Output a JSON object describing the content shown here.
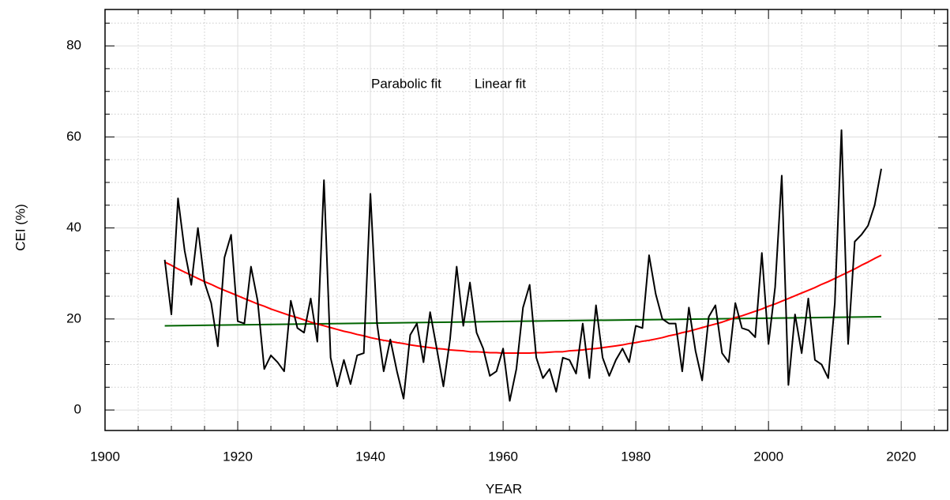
{
  "chart_data": {
    "type": "line",
    "xlabel": "YEAR",
    "ylabel": "CEI (%)",
    "x": [
      1909,
      1910,
      1911,
      1912,
      1913,
      1914,
      1915,
      1916,
      1917,
      1918,
      1919,
      1920,
      1921,
      1922,
      1923,
      1924,
      1925,
      1926,
      1927,
      1928,
      1929,
      1930,
      1931,
      1932,
      1933,
      1934,
      1935,
      1936,
      1937,
      1938,
      1939,
      1940,
      1941,
      1942,
      1943,
      1944,
      1945,
      1946,
      1947,
      1948,
      1949,
      1950,
      1951,
      1952,
      1953,
      1954,
      1955,
      1956,
      1957,
      1958,
      1959,
      1960,
      1961,
      1962,
      1963,
      1964,
      1965,
      1966,
      1967,
      1968,
      1969,
      1970,
      1971,
      1972,
      1973,
      1974,
      1975,
      1976,
      1977,
      1978,
      1979,
      1980,
      1981,
      1982,
      1983,
      1984,
      1985,
      1986,
      1987,
      1988,
      1989,
      1990,
      1991,
      1992,
      1993,
      1994,
      1995,
      1996,
      1997,
      1998,
      1999,
      2000,
      2001,
      2002,
      2003,
      2004,
      2005,
      2006,
      2007,
      2008,
      2009,
      2010,
      2011,
      2012,
      2013,
      2014,
      2015,
      2016,
      2017
    ],
    "series": [
      {
        "color": "#000000",
        "values": [
          33,
          21,
          46.5,
          35,
          27.5,
          40,
          28,
          23.5,
          14,
          33.5,
          38.5,
          19.5,
          19,
          31.5,
          24,
          9,
          12,
          10.5,
          8.5,
          24,
          18,
          17,
          24.5,
          15,
          50.5,
          11.5,
          5.2,
          11,
          5.7,
          12,
          12.5,
          47.5,
          19,
          8.5,
          15.5,
          8.5,
          2.5,
          16.5,
          19,
          10.5,
          21.5,
          13.5,
          5.2,
          15.5,
          31.5,
          18.5,
          28,
          17,
          13.5,
          7.5,
          8.5,
          13.5,
          2,
          9,
          22.5,
          27.5,
          11.5,
          7,
          9,
          4,
          11.5,
          11,
          8,
          19,
          7,
          23,
          11.5,
          7.5,
          11,
          13.5,
          10.5,
          18.5,
          18,
          34,
          25.5,
          20,
          19,
          19,
          8.5,
          22.5,
          13,
          6.5,
          20.5,
          23,
          12.5,
          10.5,
          23.5,
          18,
          17.5,
          16,
          34.5,
          14.5,
          27,
          51.5,
          5.5,
          21,
          12.5,
          24.5,
          11,
          10,
          7,
          23.5,
          61.5,
          14.5,
          37,
          38.5,
          40.5,
          45,
          53
        ]
      },
      {
        "name": "Parabolic fit",
        "color": "#ff0000",
        "values": [
          32.5,
          31.8,
          31.0,
          30.3,
          29.6,
          28.9,
          28.2,
          27.6,
          26.9,
          26.3,
          25.7,
          25.1,
          24.5,
          23.9,
          23.3,
          22.8,
          22.2,
          21.7,
          21.2,
          20.7,
          20.3,
          19.8,
          19.3,
          18.9,
          18.5,
          18.1,
          17.7,
          17.3,
          17.0,
          16.6,
          16.3,
          15.9,
          15.6,
          15.3,
          15.1,
          14.8,
          14.6,
          14.3,
          14.1,
          13.9,
          13.7,
          13.5,
          13.4,
          13.2,
          13.1,
          13.0,
          12.8,
          12.8,
          12.7,
          12.6,
          12.6,
          12.5,
          12.5,
          12.5,
          12.5,
          12.5,
          12.6,
          12.6,
          12.7,
          12.8,
          12.8,
          13.0,
          13.1,
          13.2,
          13.4,
          13.5,
          13.7,
          13.9,
          14.1,
          14.3,
          14.6,
          14.8,
          15.1,
          15.3,
          15.6,
          15.9,
          16.3,
          16.6,
          17.0,
          17.3,
          17.7,
          18.1,
          18.5,
          18.9,
          19.3,
          19.8,
          20.3,
          20.7,
          21.2,
          21.7,
          22.2,
          22.8,
          23.3,
          23.9,
          24.5,
          25.1,
          25.7,
          26.3,
          26.9,
          27.6,
          28.2,
          28.9,
          29.6,
          30.3,
          31.0,
          31.8,
          32.5,
          33.3,
          34.0
        ]
      },
      {
        "name": "Linear fit",
        "color": "#006400",
        "x": [
          1909,
          2017
        ],
        "values": [
          18.5,
          20.5
        ]
      }
    ],
    "xlim": [
      1900,
      2027
    ],
    "xticks": [
      1900,
      1920,
      1940,
      1960,
      1980,
      2000,
      2020
    ],
    "ylim": [
      -4.5,
      88
    ],
    "yticks": [
      0,
      20,
      40,
      60,
      80
    ],
    "grid": true,
    "minor_grid": true
  }
}
